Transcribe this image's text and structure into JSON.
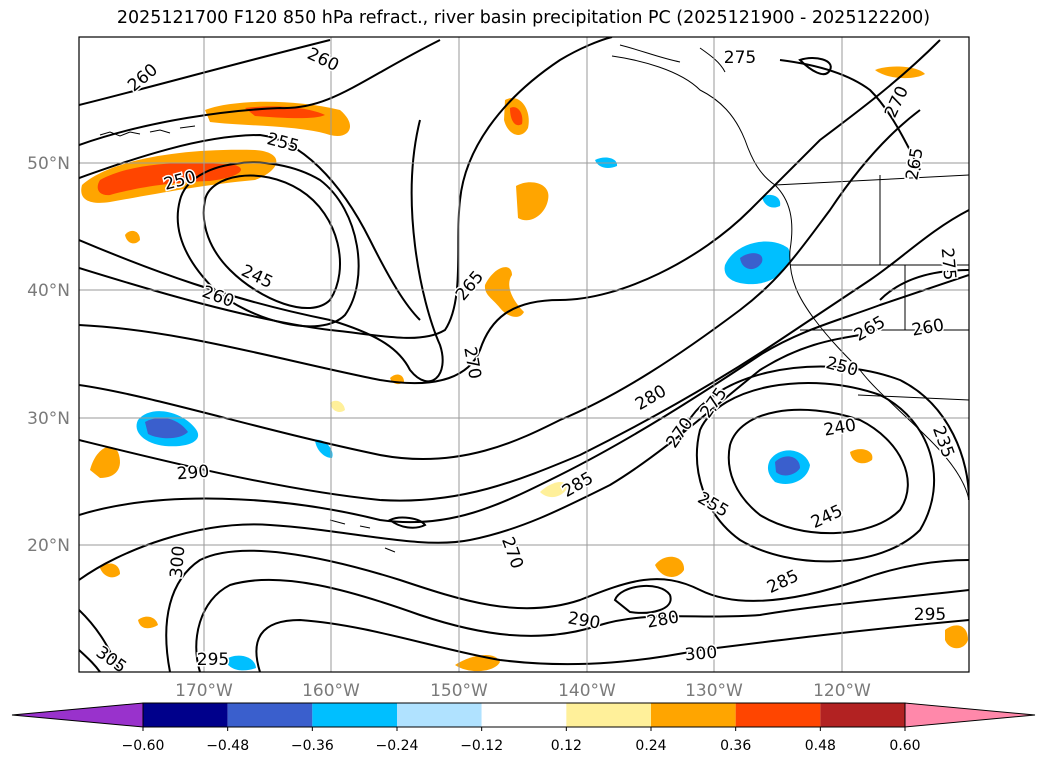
{
  "title": "2025121700 F120 850 hPa refract., river basin precipitation PC (2025121900 - 2025122200)",
  "lat_labels": [
    "50°N",
    "40°N",
    "30°N",
    "20°N"
  ],
  "lon_labels": [
    "170°W",
    "160°W",
    "150°W",
    "140°W",
    "130°W",
    "120°W"
  ],
  "contour_labels": [
    "260",
    "260",
    "255",
    "250",
    "245",
    "260",
    "265",
    "270",
    "275",
    "270",
    "265",
    "275",
    "265",
    "260",
    "250",
    "280",
    "275",
    "270",
    "240",
    "290",
    "285",
    "255",
    "245",
    "235",
    "270",
    "300",
    "305",
    "295",
    "290",
    "280",
    "285",
    "300",
    "295"
  ],
  "colorbar": {
    "ticks": [
      "−0.60",
      "−0.48",
      "−0.36",
      "−0.24",
      "−0.12",
      "0.12",
      "0.24",
      "0.36",
      "0.48",
      "0.60"
    ],
    "colors": [
      "#9932cc",
      "#00008b",
      "#3a5fcd",
      "#00bfff",
      "#b0e2ff",
      "#ffffff",
      "#fff09a",
      "#ffa500",
      "#ff4500",
      "#b22222",
      "#ff88aa"
    ]
  }
}
